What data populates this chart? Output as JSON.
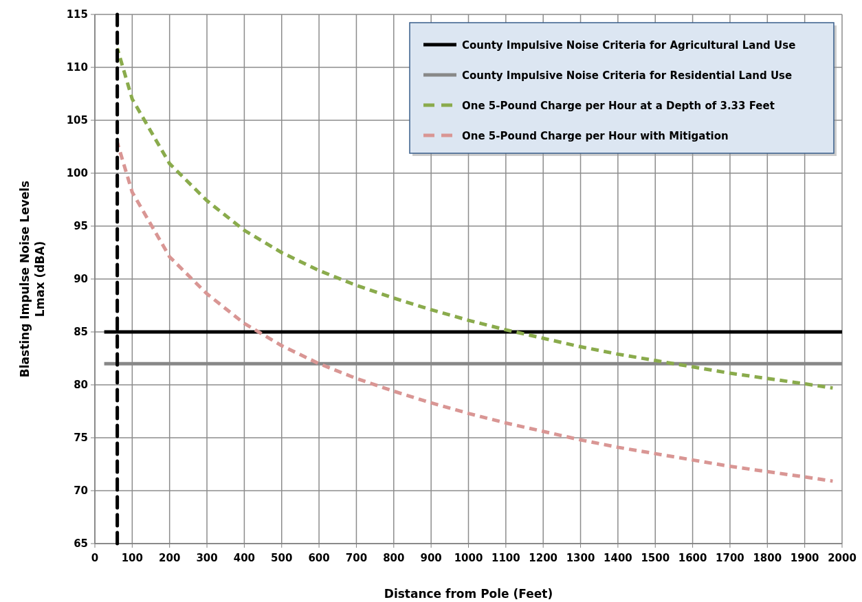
{
  "chart_data": {
    "type": "line",
    "xlabel": "Distance from Pole (Feet)",
    "ylabel": "Blasting Impulse Noise Levels\nLmax (dBA)",
    "xlim": [
      0,
      2000
    ],
    "xticks": [
      0,
      100,
      200,
      300,
      400,
      500,
      600,
      700,
      800,
      900,
      1000,
      1100,
      1200,
      1300,
      1400,
      1500,
      1600,
      1700,
      1800,
      1900,
      2000
    ],
    "ylim": [
      65,
      115
    ],
    "yticks": [
      65,
      70,
      75,
      80,
      85,
      90,
      95,
      100,
      105,
      110,
      115
    ],
    "grid": true,
    "legend": "top right",
    "series": [
      {
        "name": "County Impulsive Noise Criteria for Agricultural Land Use",
        "color": "#000000",
        "line_style": "solid",
        "x": [
          25,
          2000
        ],
        "values": [
          85,
          85
        ]
      },
      {
        "name": "County Impulsive Noise Criteria for Residential Land Use",
        "color": "#888888",
        "line_style": "solid",
        "x": [
          25,
          2000
        ],
        "values": [
          82,
          82
        ]
      },
      {
        "name": "One 5-Pound Charge per Hour at a Depth of 3.33 Feet",
        "color": "#8aab4c",
        "line_style": "dashed",
        "x": [
          60,
          100,
          200,
          300,
          400,
          500,
          600,
          700,
          800,
          900,
          1000,
          1100,
          1200,
          1300,
          1400,
          1500,
          1600,
          1700,
          1800,
          1900,
          1975
        ],
        "values": [
          111.8,
          107,
          100.9,
          97.4,
          94.6,
          92.5,
          90.8,
          89.4,
          88.2,
          87.1,
          86.1,
          85.2,
          84.4,
          83.6,
          82.9,
          82.3,
          81.7,
          81.1,
          80.6,
          80.1,
          79.7
        ]
      },
      {
        "name": "One 5-Pound Charge per Hour with Mitigation",
        "color": "#d99694",
        "line_style": "dashed",
        "x": [
          60,
          100,
          200,
          300,
          400,
          500,
          600,
          700,
          800,
          900,
          1000,
          1100,
          1200,
          1300,
          1400,
          1500,
          1600,
          1700,
          1800,
          1900,
          1975
        ],
        "values": [
          102.9,
          98.2,
          92.1,
          88.6,
          85.8,
          83.7,
          82,
          80.6,
          79.4,
          78.3,
          77.3,
          76.4,
          75.6,
          74.8,
          74.1,
          73.5,
          72.9,
          72.3,
          71.8,
          71.3,
          70.9
        ]
      }
    ],
    "ref_lines": [
      {
        "axis": "x",
        "value": 60,
        "color": "#000000",
        "line_style": "dashed"
      }
    ]
  }
}
